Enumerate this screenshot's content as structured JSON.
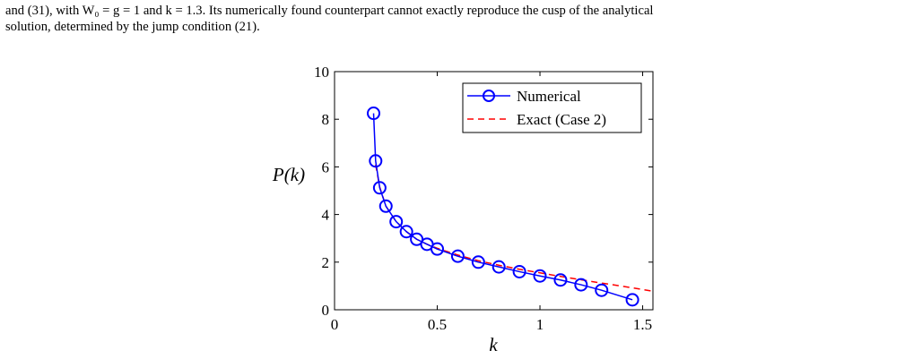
{
  "text": {
    "line1": "and (31), with W₀ = g = 1 and k = 1.3.  Its numerically found counterpart cannot exactly reproduce the cusp of the analytical",
    "line2": "solution, determined by the jump condition (21)."
  },
  "chart_data": {
    "type": "line",
    "xlabel": "k",
    "ylabel": "P(k)",
    "xlim": [
      0,
      1.55
    ],
    "ylim": [
      0,
      10
    ],
    "xticks": [
      0,
      0.5,
      1,
      1.5
    ],
    "xtick_labels": [
      "0",
      "0.5",
      "1",
      "1.5"
    ],
    "yticks": [
      0,
      2,
      4,
      6,
      8,
      10
    ],
    "ytick_labels": [
      "0",
      "2",
      "4",
      "6",
      "8",
      "10"
    ],
    "grid": false,
    "legend": "top-right",
    "series": [
      {
        "name": "Numerical",
        "color": "#0000ff",
        "style": "solid-with-circles",
        "x": [
          0.19,
          0.2,
          0.22,
          0.25,
          0.3,
          0.35,
          0.4,
          0.45,
          0.5,
          0.6,
          0.7,
          0.8,
          0.9,
          1.0,
          1.1,
          1.2,
          1.3,
          1.45
        ],
        "y": [
          8.25,
          6.25,
          5.12,
          4.35,
          3.7,
          3.28,
          2.96,
          2.75,
          2.55,
          2.25,
          2.0,
          1.8,
          1.6,
          1.42,
          1.25,
          1.05,
          0.82,
          0.42
        ]
      },
      {
        "name": "Exact (Case 2)",
        "color": "#ff0000",
        "style": "dashed",
        "x": [
          0.2,
          0.22,
          0.25,
          0.3,
          0.35,
          0.4,
          0.45,
          0.5,
          0.6,
          0.7,
          0.8,
          0.9,
          1.0,
          1.1,
          1.2,
          1.3,
          1.4,
          1.55
        ],
        "y": [
          6.1,
          5.15,
          4.35,
          3.7,
          3.28,
          2.96,
          2.75,
          2.58,
          2.3,
          2.06,
          1.87,
          1.7,
          1.55,
          1.4,
          1.26,
          1.12,
          0.99,
          0.78
        ]
      }
    ]
  }
}
